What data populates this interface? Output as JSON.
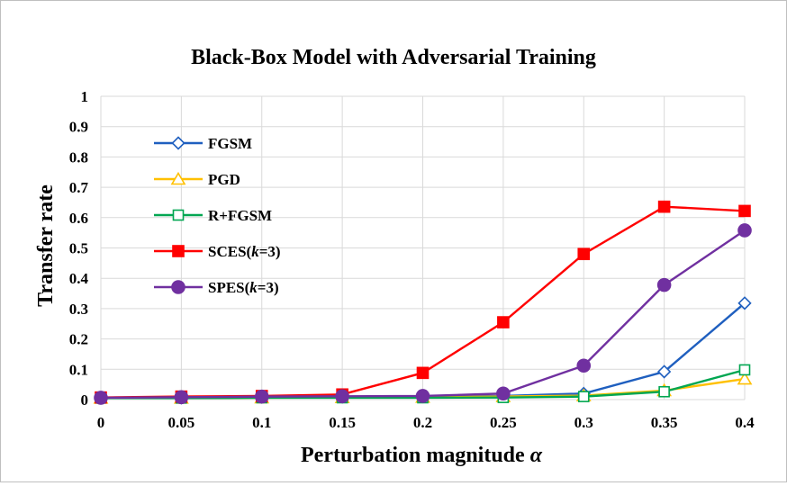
{
  "chart_data": {
    "type": "line",
    "title": "Black-Box Model with Adversarial Training",
    "xlabel": "Perturbation magnitude",
    "xlabel_symbol": "α",
    "ylabel": "Transfer rate",
    "x": [
      0,
      0.05,
      0.1,
      0.15,
      0.2,
      0.25,
      0.3,
      0.35,
      0.4
    ],
    "x_tick_labels": [
      "0",
      "0.05",
      "0.1",
      "0.15",
      "0.2",
      "0.25",
      "0.3",
      "0.35",
      "0.4"
    ],
    "y_tick_labels": [
      "0",
      "0.1",
      "0.2",
      "0.3",
      "0.4",
      "0.5",
      "0.6",
      "0.7",
      "0.8",
      "0.9",
      "1"
    ],
    "xlim": [
      0,
      0.4
    ],
    "ylim": [
      0,
      1
    ],
    "grid": true,
    "legend_position": "upper-left inside plot",
    "series": [
      {
        "name": "FGSM",
        "color": "#1f5fbf",
        "marker": "diamond-open",
        "values": [
          0.005,
          0.006,
          0.008,
          0.009,
          0.01,
          0.012,
          0.02,
          0.092,
          0.318
        ]
      },
      {
        "name": "PGD",
        "color": "#ffc000",
        "marker": "triangle-open",
        "values": [
          0.005,
          0.005,
          0.006,
          0.007,
          0.008,
          0.01,
          0.013,
          0.03,
          0.068
        ]
      },
      {
        "name": "R+FGSM",
        "color": "#00a651",
        "marker": "square-open",
        "values": [
          0.005,
          0.005,
          0.006,
          0.006,
          0.006,
          0.007,
          0.01,
          0.026,
          0.098
        ]
      },
      {
        "name": "SCES(k=3)",
        "name_parts": [
          "SCES(",
          "k",
          "=3)"
        ],
        "color": "#ff0000",
        "marker": "square-filled",
        "values": [
          0.007,
          0.01,
          0.012,
          0.017,
          0.088,
          0.255,
          0.48,
          0.636,
          0.622
        ]
      },
      {
        "name": "SPES(k=3)",
        "name_parts": [
          "SPES(",
          "k",
          "=3)"
        ],
        "color": "#7030a0",
        "marker": "circle-filled",
        "values": [
          0.006,
          0.008,
          0.01,
          0.011,
          0.012,
          0.02,
          0.112,
          0.378,
          0.558
        ]
      }
    ]
  }
}
